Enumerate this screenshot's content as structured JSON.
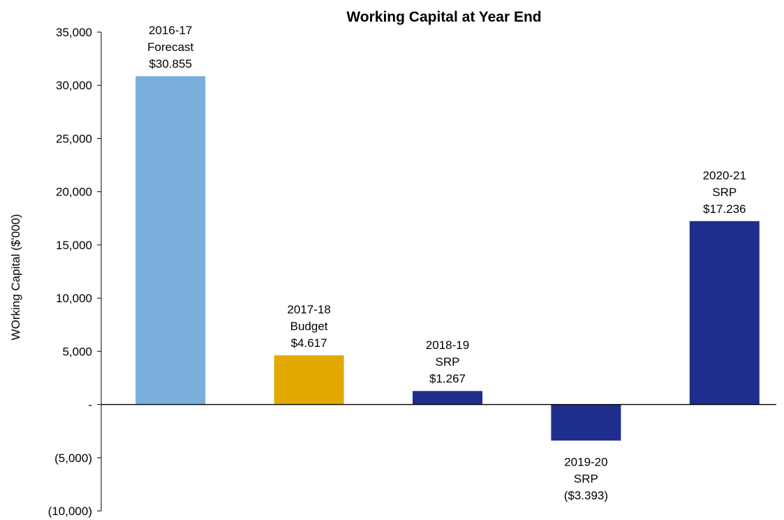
{
  "chart_data": {
    "type": "bar",
    "title": "Working Capital at Year End",
    "ylabel": "WOrking Capital ($'000)",
    "xlabel": "",
    "ylim": [
      -10000,
      35000
    ],
    "y_ticks": [
      {
        "value": 35000,
        "label": "35,000"
      },
      {
        "value": 30000,
        "label": "30,000"
      },
      {
        "value": 25000,
        "label": "25,000"
      },
      {
        "value": 20000,
        "label": "20,000"
      },
      {
        "value": 15000,
        "label": "15,000"
      },
      {
        "value": 10000,
        "label": "10,000"
      },
      {
        "value": 5000,
        "label": "5,000"
      },
      {
        "value": 0,
        "label": "-"
      },
      {
        "value": -5000,
        "label": "(5,000)"
      },
      {
        "value": -10000,
        "label": "(10,000)"
      }
    ],
    "categories": [
      "2016-17",
      "2017-18",
      "2018-19",
      "2019-20",
      "2020-21"
    ],
    "values": [
      30855,
      4617,
      1267,
      -3393,
      17236
    ],
    "colors": [
      "#7aaedb",
      "#e2aa00",
      "#1f2e8c",
      "#1f2e8c",
      "#1f2e8c"
    ],
    "data_labels": [
      [
        "2016-17",
        "Forecast",
        "$30.855"
      ],
      [
        "2017-18",
        "Budget",
        "$4.617"
      ],
      [
        "2018-19",
        "SRP",
        "$1.267"
      ],
      [
        "2019-20",
        "SRP",
        "($3.393)"
      ],
      [
        "2020-21",
        "SRP",
        "$17.236"
      ]
    ],
    "grid": false,
    "legend": "none"
  }
}
